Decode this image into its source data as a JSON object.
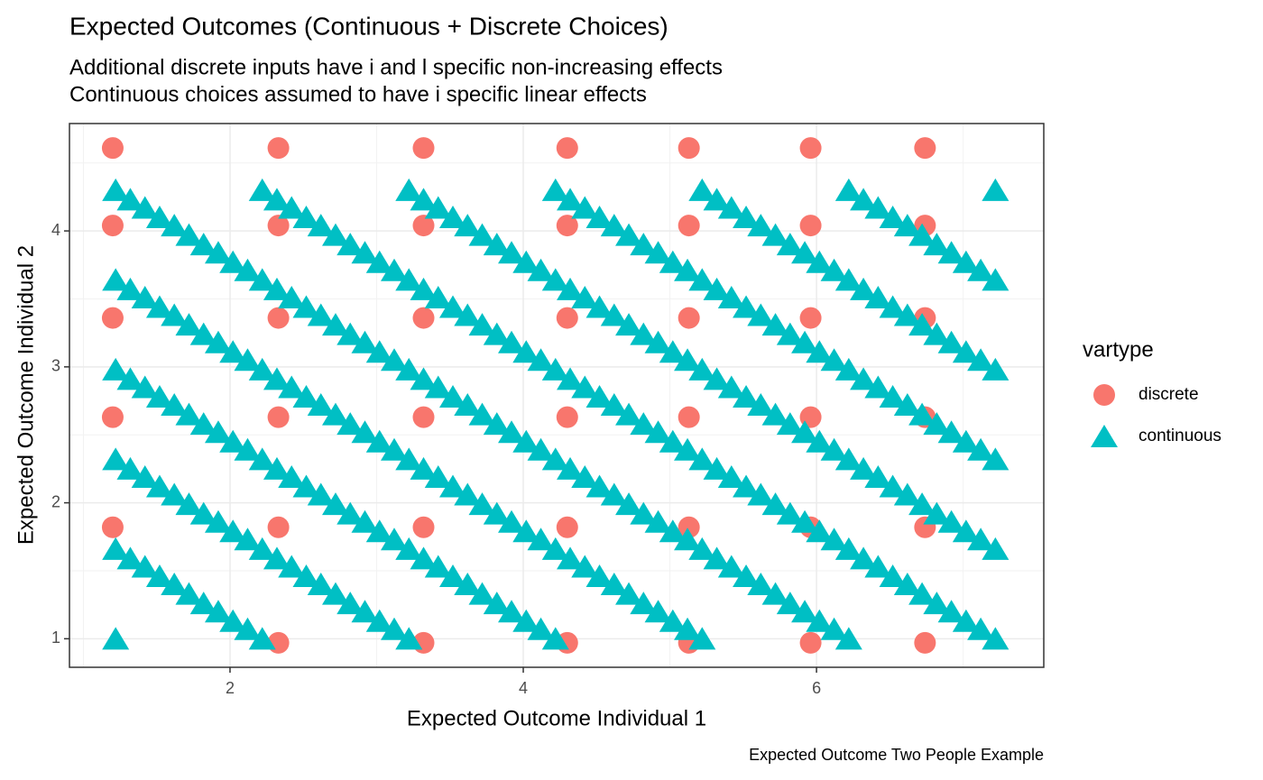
{
  "chart_data": {
    "type": "scatter",
    "title": "Expected Outcomes (Continuous + Discrete Choices)",
    "subtitle": [
      "Additional discrete inputs have i and l specific non-increasing effects",
      "Continuous choices assumed to have i specific linear effects"
    ],
    "caption": "Expected Outcome Two People Example",
    "x_label": "Expected Outcome Individual 1",
    "y_label": "Expected Outcome Individual 2",
    "legend_title": "vartype",
    "xlim": [
      0.905,
      7.55
    ],
    "ylim": [
      0.79,
      4.79
    ],
    "xticks": [
      2,
      4,
      6
    ],
    "yticks": [
      1,
      2,
      3,
      4
    ],
    "minor_xticks": [
      1,
      3,
      5,
      7
    ],
    "minor_yticks": [
      1.5,
      2.5,
      3.5,
      4.5
    ],
    "grid": true,
    "series": [
      {
        "name": "discrete",
        "color": "#F8766D",
        "shape": "circle",
        "x": [
          1.2,
          2.33,
          3.32,
          4.3,
          5.13,
          5.96,
          6.74,
          1.2,
          2.33,
          3.32,
          4.3,
          5.13,
          5.96,
          6.74,
          1.2,
          2.33,
          3.32,
          4.3,
          5.13,
          5.96,
          6.74,
          1.2,
          2.33,
          3.32,
          4.3,
          5.13,
          5.96,
          6.74,
          1.2,
          2.33,
          3.32,
          4.3,
          5.13,
          5.96,
          6.74,
          2.33,
          3.32,
          4.3,
          5.13,
          5.96,
          6.74
        ],
        "values": [
          4.61,
          4.61,
          4.61,
          4.61,
          4.61,
          4.61,
          4.61,
          4.04,
          4.04,
          4.04,
          4.04,
          4.04,
          4.04,
          4.04,
          3.36,
          3.36,
          3.36,
          3.36,
          3.36,
          3.36,
          3.36,
          2.63,
          2.63,
          2.63,
          2.63,
          2.63,
          2.63,
          2.63,
          1.82,
          1.82,
          1.82,
          1.82,
          1.82,
          1.82,
          1.82,
          0.97,
          0.97,
          0.97,
          0.97,
          0.97,
          0.97
        ]
      },
      {
        "name": "continuous",
        "color": "#00BFC4",
        "shape": "triangle",
        "x": [
          1.22,
          1.22,
          1.32,
          1.42,
          1.52,
          1.62,
          1.72,
          1.82,
          1.92,
          2.02,
          2.12,
          2.22,
          1.22,
          1.32,
          1.42,
          1.52,
          1.62,
          1.72,
          1.82,
          1.92,
          2.02,
          2.12,
          2.22,
          2.32,
          2.42,
          2.52,
          2.62,
          2.72,
          2.82,
          2.92,
          3.02,
          3.12,
          3.22,
          1.22,
          1.32,
          1.42,
          1.52,
          1.62,
          1.72,
          1.82,
          1.92,
          2.02,
          2.12,
          2.22,
          2.32,
          2.42,
          2.52,
          2.62,
          2.72,
          2.82,
          2.92,
          3.02,
          3.12,
          3.22,
          3.32,
          3.42,
          3.52,
          3.62,
          3.72,
          3.82,
          3.92,
          4.02,
          4.12,
          4.22,
          1.22,
          1.32,
          1.42,
          1.52,
          1.62,
          1.72,
          1.82,
          1.92,
          2.02,
          2.12,
          2.22,
          2.32,
          2.42,
          2.52,
          2.62,
          2.72,
          2.82,
          2.92,
          3.02,
          3.12,
          3.22,
          3.32,
          3.42,
          3.52,
          3.62,
          3.72,
          3.82,
          3.92,
          4.02,
          4.12,
          4.22,
          4.32,
          4.42,
          4.52,
          4.62,
          4.72,
          4.82,
          4.92,
          5.02,
          5.12,
          5.22,
          1.22,
          1.32,
          1.42,
          1.52,
          1.62,
          1.72,
          1.82,
          1.92,
          2.02,
          2.12,
          2.22,
          2.32,
          2.42,
          2.52,
          2.62,
          2.72,
          2.82,
          2.92,
          3.02,
          3.12,
          3.22,
          3.32,
          3.42,
          3.52,
          3.62,
          3.72,
          3.82,
          3.92,
          4.02,
          4.12,
          4.22,
          4.32,
          4.42,
          4.52,
          4.62,
          4.72,
          4.82,
          4.92,
          5.02,
          5.12,
          5.22,
          5.32,
          5.42,
          5.52,
          5.62,
          5.72,
          5.82,
          5.92,
          6.02,
          6.12,
          6.22,
          2.22,
          2.32,
          2.42,
          2.52,
          2.62,
          2.72,
          2.82,
          2.92,
          3.02,
          3.12,
          3.22,
          3.32,
          3.42,
          3.52,
          3.62,
          3.72,
          3.82,
          3.92,
          4.02,
          4.12,
          4.22,
          4.32,
          4.42,
          4.52,
          4.62,
          4.72,
          4.82,
          4.92,
          5.02,
          5.12,
          5.22,
          5.32,
          5.42,
          5.52,
          5.62,
          5.72,
          5.82,
          5.92,
          6.02,
          6.12,
          6.22,
          6.32,
          6.42,
          6.52,
          6.62,
          6.72,
          6.82,
          6.92,
          7.02,
          7.12,
          7.22,
          3.22,
          3.32,
          3.42,
          3.52,
          3.62,
          3.72,
          3.82,
          3.92,
          4.02,
          4.12,
          4.22,
          4.32,
          4.42,
          4.52,
          4.62,
          4.72,
          4.82,
          4.92,
          5.02,
          5.12,
          5.22,
          5.32,
          5.42,
          5.52,
          5.62,
          5.72,
          5.82,
          5.92,
          6.02,
          6.12,
          6.22,
          6.32,
          6.42,
          6.52,
          6.62,
          6.72,
          6.82,
          6.92,
          7.02,
          7.12,
          7.22,
          4.22,
          4.32,
          4.42,
          4.52,
          4.62,
          4.72,
          4.82,
          4.92,
          5.02,
          5.12,
          5.22,
          5.32,
          5.42,
          5.52,
          5.62,
          5.72,
          5.82,
          5.92,
          6.02,
          6.12,
          6.22,
          6.32,
          6.42,
          6.52,
          6.62,
          6.72,
          6.82,
          6.92,
          7.02,
          7.12,
          7.22,
          5.22,
          5.32,
          5.42,
          5.52,
          5.62,
          5.72,
          5.82,
          5.92,
          6.02,
          6.12,
          6.22,
          6.32,
          6.42,
          6.52,
          6.62,
          6.72,
          6.82,
          6.92,
          7.02,
          7.12,
          7.22,
          6.22,
          6.32,
          6.42,
          6.52,
          6.62,
          6.72,
          6.82,
          6.92,
          7.02,
          7.12,
          7.22,
          7.22
        ],
        "values": [
          1,
          1.66,
          1.59,
          1.53,
          1.46,
          1.4,
          1.33,
          1.26,
          1.2,
          1.13,
          1.07,
          1,
          2.32,
          2.25,
          2.19,
          2.12,
          2.06,
          1.99,
          1.92,
          1.86,
          1.79,
          1.73,
          1.66,
          1.59,
          1.53,
          1.46,
          1.4,
          1.33,
          1.26,
          1.2,
          1.13,
          1.07,
          1,
          2.98,
          2.91,
          2.85,
          2.78,
          2.72,
          2.65,
          2.58,
          2.52,
          2.45,
          2.39,
          2.32,
          2.25,
          2.19,
          2.12,
          2.06,
          1.99,
          1.92,
          1.86,
          1.79,
          1.73,
          1.66,
          1.59,
          1.53,
          1.46,
          1.4,
          1.33,
          1.26,
          1.2,
          1.13,
          1.07,
          1,
          3.64,
          3.57,
          3.51,
          3.44,
          3.38,
          3.31,
          3.24,
          3.18,
          3.11,
          3.05,
          2.98,
          2.91,
          2.85,
          2.78,
          2.72,
          2.65,
          2.58,
          2.52,
          2.45,
          2.39,
          2.32,
          2.25,
          2.19,
          2.12,
          2.06,
          1.99,
          1.92,
          1.86,
          1.79,
          1.73,
          1.66,
          1.59,
          1.53,
          1.46,
          1.4,
          1.33,
          1.26,
          1.2,
          1.13,
          1.07,
          1,
          4.3,
          4.23,
          4.17,
          4.1,
          4.04,
          3.97,
          3.9,
          3.84,
          3.77,
          3.71,
          3.64,
          3.57,
          3.51,
          3.44,
          3.38,
          3.31,
          3.24,
          3.18,
          3.11,
          3.05,
          2.98,
          2.91,
          2.85,
          2.78,
          2.72,
          2.65,
          2.58,
          2.52,
          2.45,
          2.39,
          2.32,
          2.25,
          2.19,
          2.12,
          2.06,
          1.99,
          1.92,
          1.86,
          1.79,
          1.73,
          1.66,
          1.59,
          1.53,
          1.46,
          1.4,
          1.33,
          1.26,
          1.2,
          1.13,
          1.07,
          1,
          4.3,
          4.23,
          4.17,
          4.1,
          4.04,
          3.97,
          3.9,
          3.84,
          3.77,
          3.71,
          3.64,
          3.57,
          3.51,
          3.44,
          3.38,
          3.31,
          3.24,
          3.18,
          3.11,
          3.05,
          2.98,
          2.91,
          2.85,
          2.78,
          2.72,
          2.65,
          2.58,
          2.52,
          2.45,
          2.39,
          2.32,
          2.25,
          2.19,
          2.12,
          2.06,
          1.99,
          1.92,
          1.86,
          1.79,
          1.73,
          1.66,
          1.59,
          1.53,
          1.46,
          1.4,
          1.33,
          1.26,
          1.2,
          1.13,
          1.07,
          1,
          4.3,
          4.23,
          4.17,
          4.1,
          4.04,
          3.97,
          3.9,
          3.84,
          3.77,
          3.71,
          3.64,
          3.57,
          3.51,
          3.44,
          3.38,
          3.31,
          3.24,
          3.18,
          3.11,
          3.05,
          2.98,
          2.91,
          2.85,
          2.78,
          2.72,
          2.65,
          2.58,
          2.52,
          2.45,
          2.39,
          2.32,
          2.25,
          2.19,
          2.12,
          2.06,
          1.99,
          1.92,
          1.86,
          1.79,
          1.73,
          1.66,
          4.3,
          4.23,
          4.17,
          4.1,
          4.04,
          3.97,
          3.9,
          3.84,
          3.77,
          3.71,
          3.64,
          3.57,
          3.51,
          3.44,
          3.38,
          3.31,
          3.24,
          3.18,
          3.11,
          3.05,
          2.98,
          2.91,
          2.85,
          2.78,
          2.72,
          2.65,
          2.58,
          2.52,
          2.45,
          2.39,
          2.32,
          4.3,
          4.23,
          4.17,
          4.1,
          4.04,
          3.97,
          3.9,
          3.84,
          3.77,
          3.71,
          3.64,
          3.57,
          3.51,
          3.44,
          3.38,
          3.31,
          3.24,
          3.18,
          3.11,
          3.05,
          2.98,
          4.3,
          4.23,
          4.17,
          4.1,
          4.04,
          3.97,
          3.9,
          3.84,
          3.77,
          3.71,
          3.64,
          4.3
        ]
      }
    ]
  }
}
